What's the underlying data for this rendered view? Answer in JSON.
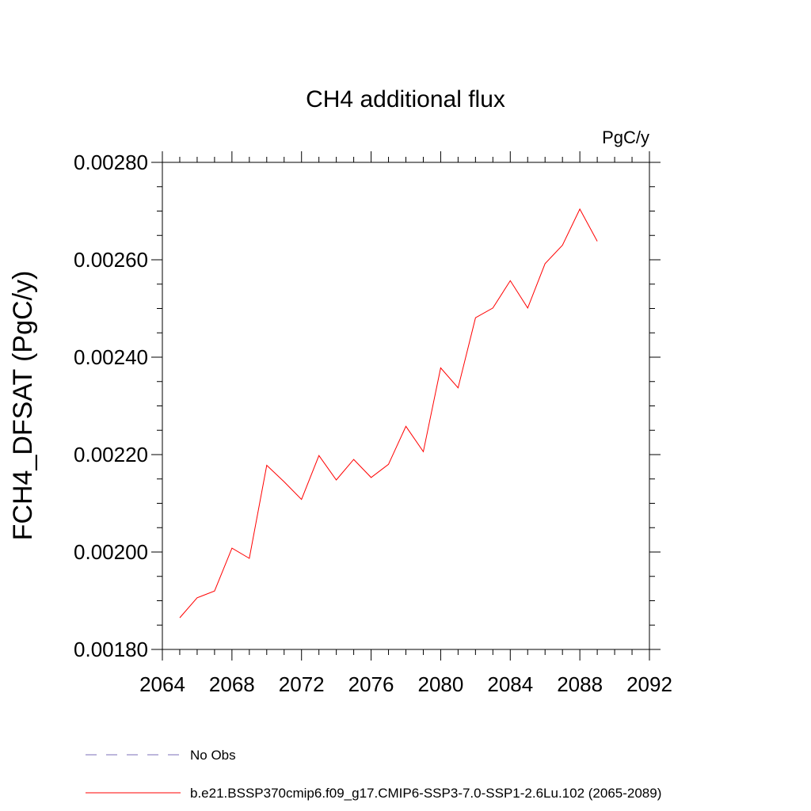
{
  "chart_data": {
    "type": "line",
    "title": "CH4 additional flux",
    "units": "PgC/y",
    "ylabel": "FCH4_DFSAT  (PgC/y)",
    "xlabel": "",
    "xlim": [
      2064,
      2092
    ],
    "ylim": [
      0.0018,
      0.0028
    ],
    "x_ticks": [
      2064,
      2068,
      2072,
      2076,
      2080,
      2084,
      2088,
      2092
    ],
    "x_tick_labels": [
      "2064",
      "2068",
      "2072",
      "2076",
      "2080",
      "2084",
      "2088",
      "2092"
    ],
    "x_minor_step": 1,
    "y_ticks": [
      0.0018,
      0.002,
      0.0022,
      0.0024,
      0.0026,
      0.0028
    ],
    "y_tick_labels": [
      "0.00180",
      "0.00200",
      "0.00220",
      "0.00240",
      "0.00260",
      "0.00280"
    ],
    "y_minor_step": 5e-05,
    "grid": false,
    "legend_placement": "bottom",
    "series": [
      {
        "name": "b.e21.BSSP370cmip6.f09_g17.CMIP6-SSP3-7.0-SSP1-2.6Lu.102 (2065-2089)",
        "color": "#ff0000",
        "style": "solid",
        "x": [
          2065,
          2066,
          2067,
          2068,
          2069,
          2070,
          2071,
          2072,
          2073,
          2074,
          2075,
          2076,
          2077,
          2078,
          2079,
          2080,
          2081,
          2082,
          2083,
          2084,
          2085,
          2086,
          2087,
          2088,
          2089
        ],
        "y": [
          0.001865,
          0.001906,
          0.00192,
          0.002008,
          0.001987,
          0.002178,
          0.002144,
          0.002108,
          0.002198,
          0.002148,
          0.00219,
          0.002153,
          0.00218,
          0.002258,
          0.002206,
          0.002378,
          0.002337,
          0.002481,
          0.002501,
          0.002557,
          0.002501,
          0.002592,
          0.00263,
          0.002704,
          0.002638
        ]
      }
    ],
    "legend": [
      {
        "label": "No Obs",
        "color": "#7b6fb8",
        "style": "dashed"
      },
      {
        "label": "b.e21.BSSP370cmip6.f09_g17.CMIP6-SSP3-7.0-SSP1-2.6Lu.102 (2065-2089)",
        "color": "#ff0000",
        "style": "solid"
      }
    ]
  }
}
